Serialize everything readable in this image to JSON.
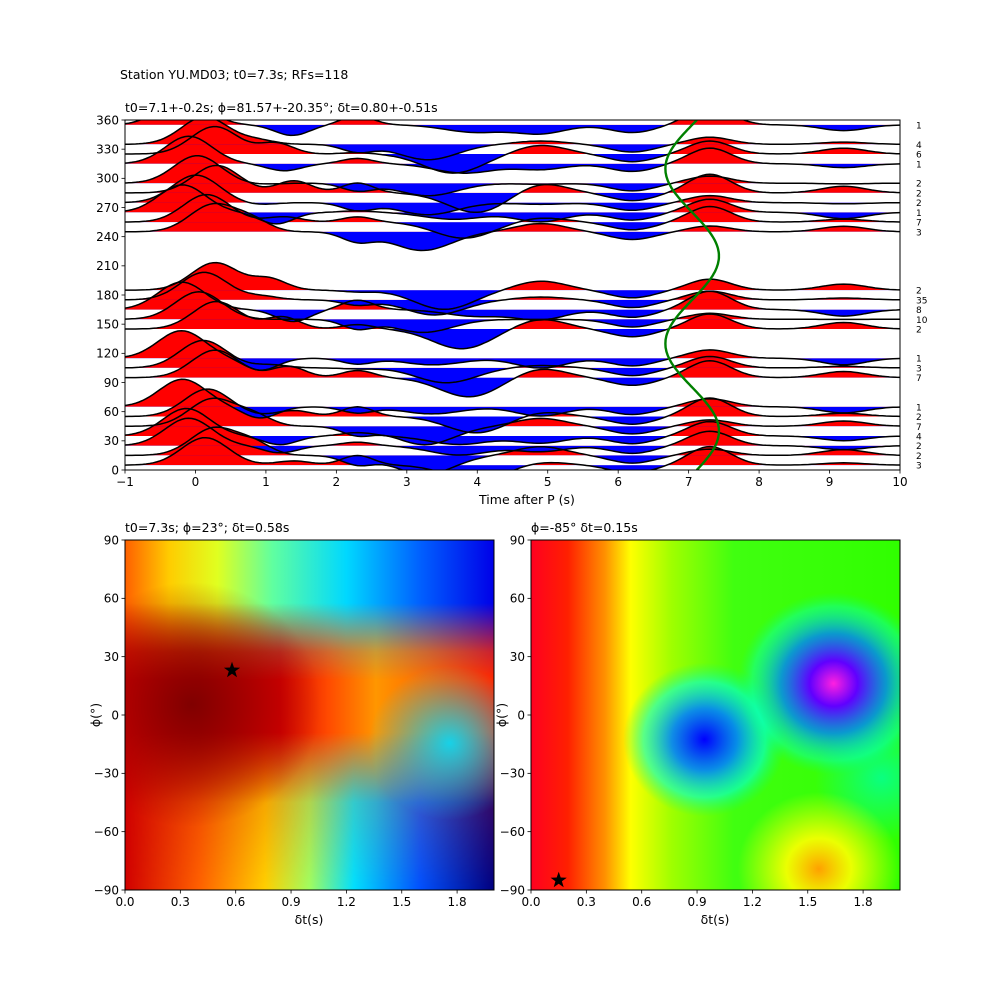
{
  "suptitle": "Station YU.MD03; t0=7.3s; RFs=118",
  "chart_data": [
    {
      "type": "line",
      "title": "t0=7.1+-0.2s; ϕ=81.57+-20.35°; δt=0.80+-0.51s",
      "xlabel": "Time after P (s)",
      "ylabel": "",
      "xlim": [
        -1,
        10
      ],
      "ylim": [
        0,
        360
      ],
      "xticks": [
        "−1",
        "0",
        "1",
        "2",
        "3",
        "4",
        "5",
        "6",
        "7",
        "8",
        "9",
        "10"
      ],
      "yticks": [
        "0",
        "30",
        "60",
        "90",
        "120",
        "150",
        "180",
        "210",
        "240",
        "270",
        "300",
        "330",
        "360"
      ],
      "positive_fill_color": "#ff0000",
      "negative_fill_color": "#0000ff",
      "trace_color": "#000000",
      "traces": [
        {
          "baz": 5,
          "count": "3"
        },
        {
          "baz": 15,
          "count": "2"
        },
        {
          "baz": 25,
          "count": "2"
        },
        {
          "baz": 35,
          "count": "4"
        },
        {
          "baz": 45,
          "count": "7"
        },
        {
          "baz": 55,
          "count": "2"
        },
        {
          "baz": 65,
          "count": "1"
        },
        {
          "baz": 95,
          "count": "7"
        },
        {
          "baz": 105,
          "count": "3"
        },
        {
          "baz": 115,
          "count": "1"
        },
        {
          "baz": 145,
          "count": "2"
        },
        {
          "baz": 155,
          "count": "10"
        },
        {
          "baz": 165,
          "count": "8"
        },
        {
          "baz": 175,
          "count": "35"
        },
        {
          "baz": 185,
          "count": "2"
        },
        {
          "baz": 245,
          "count": "3"
        },
        {
          "baz": 255,
          "count": "7"
        },
        {
          "baz": 265,
          "count": "1"
        },
        {
          "baz": 275,
          "count": "2"
        },
        {
          "baz": 285,
          "count": "2"
        },
        {
          "baz": 295,
          "count": "2"
        },
        {
          "baz": 315,
          "count": "1"
        },
        {
          "baz": 325,
          "count": "6"
        },
        {
          "baz": 335,
          "count": "4"
        },
        {
          "baz": 355,
          "count": "1"
        }
      ],
      "t0_curve": {
        "color": "#008000",
        "mean": 7.05,
        "amplitude": 0.38,
        "phase_deg": 40
      }
    },
    {
      "type": "heatmap",
      "title": "t0=7.3s; ϕ=23°; δt=0.58s",
      "xlabel": "δt(s)",
      "ylabel": "ϕ(°)",
      "xlim": [
        0,
        2
      ],
      "ylim": [
        -90,
        90
      ],
      "xticks": [
        "0.0",
        "0.3",
        "0.6",
        "0.9",
        "1.2",
        "1.5",
        "1.8"
      ],
      "yticks": [
        "−90",
        "−60",
        "−30",
        "0",
        "30",
        "60",
        "90"
      ],
      "colormap": "jet",
      "best": {
        "dt": 0.58,
        "phi": 23
      }
    },
    {
      "type": "heatmap",
      "title": "ϕ=-85° δt=0.15s",
      "xlabel": "δt(s)",
      "ylabel": "ϕ(°)",
      "xlim": [
        0,
        2
      ],
      "ylim": [
        -90,
        90
      ],
      "xticks": [
        "0.0",
        "0.3",
        "0.6",
        "0.9",
        "1.2",
        "1.5",
        "1.8"
      ],
      "yticks": [
        "−90",
        "−60",
        "−30",
        "0",
        "30",
        "60",
        "90"
      ],
      "colormap": "hsv",
      "best": {
        "dt": 0.15,
        "phi": -85
      }
    }
  ]
}
